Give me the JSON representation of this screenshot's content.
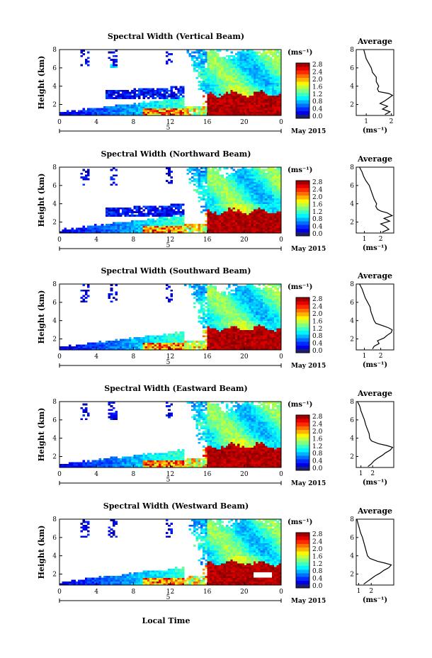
{
  "figure": {
    "xlabel": "Local Time",
    "xtick_labels": [
      "0",
      "4",
      "8",
      "12",
      "16",
      "20",
      "0"
    ],
    "date_marker": "5",
    "date_caption": "May 2015",
    "ylabel": "Height (km)",
    "ytick_labels": [
      "2",
      "4",
      "6",
      "8"
    ],
    "colorbar_unit": "(ms⁻¹)",
    "colorbar_ticks": [
      "0.0",
      "0.4",
      "0.8",
      "1.2",
      "1.6",
      "2.0",
      "2.4",
      "2.8"
    ],
    "avg_title": "Average",
    "avg_unit": "(ms⁻¹)"
  },
  "chart_data": [
    {
      "type": "heatmap",
      "title": "Spectral Width (Vertical Beam)",
      "xlabel": "Local Time",
      "ylabel": "Height (km)",
      "xlim": [
        0,
        24
      ],
      "ylim": [
        0.8,
        8
      ],
      "zlim": [
        0,
        3
      ],
      "average_profile": {
        "type": "line",
        "title": "Average",
        "xlabel": "(ms⁻¹)",
        "xlim": [
          0.6,
          2.1
        ],
        "xtick_labels": [
          "1",
          "2"
        ],
        "ylim": [
          0.8,
          8
        ],
        "height": [
          0.9,
          1.2,
          1.5,
          1.8,
          2.1,
          2.4,
          2.7,
          3.0,
          3.2,
          3.4,
          3.7,
          4.0,
          4.5,
          5.0,
          5.5,
          6.0,
          6.5,
          7.0,
          7.5,
          8.0
        ],
        "width": [
          1.75,
          1.95,
          1.65,
          1.85,
          1.55,
          1.75,
          1.9,
          2.05,
          1.9,
          1.5,
          1.45,
          1.5,
          1.4,
          1.4,
          1.25,
          1.2,
          1.1,
          1.0,
          0.95,
          0.9
        ]
      }
    },
    {
      "type": "heatmap",
      "title": "Spectral Width (Northward Beam)",
      "xlabel": "Local Time",
      "ylabel": "Height (km)",
      "xlim": [
        0,
        24
      ],
      "ylim": [
        0.8,
        8
      ],
      "zlim": [
        0,
        3
      ],
      "average_profile": {
        "type": "line",
        "title": "Average",
        "xlabel": "(ms⁻¹)",
        "xlim": [
          0.5,
          2.8
        ],
        "xtick_labels": [
          "1",
          "2"
        ],
        "ylim": [
          0.8,
          8
        ],
        "height": [
          0.9,
          1.2,
          1.5,
          1.8,
          2.1,
          2.4,
          2.7,
          3.0,
          3.2,
          3.4,
          3.7,
          4.0,
          4.5,
          5.0,
          5.5,
          6.0,
          6.5,
          7.0,
          7.5,
          8.0
        ],
        "width": [
          2.1,
          2.5,
          2.3,
          2.0,
          2.55,
          2.2,
          2.7,
          2.4,
          2.0,
          1.8,
          1.7,
          1.75,
          1.6,
          1.5,
          1.4,
          1.3,
          1.1,
          0.95,
          0.85,
          0.7
        ]
      }
    },
    {
      "type": "heatmap",
      "title": "Spectral Width (Southward Beam)",
      "xlabel": "Local Time",
      "ylabel": "Height (km)",
      "xlim": [
        0,
        24
      ],
      "ylim": [
        0.8,
        8
      ],
      "zlim": [
        0,
        3
      ],
      "average_profile": {
        "type": "line",
        "title": "Average",
        "xlabel": "(ms⁻¹)",
        "xlim": [
          0.5,
          2.8
        ],
        "xtick_labels": [
          "1",
          "2"
        ],
        "ylim": [
          0.8,
          8
        ],
        "height": [
          0.9,
          1.2,
          1.5,
          1.8,
          2.1,
          2.4,
          2.7,
          3.0,
          3.2,
          3.4,
          3.7,
          4.0,
          4.5,
          5.0,
          5.5,
          6.0,
          6.5,
          7.0,
          7.5,
          8.0
        ],
        "width": [
          1.5,
          1.6,
          1.9,
          1.8,
          2.2,
          2.4,
          2.65,
          2.7,
          2.5,
          2.2,
          1.7,
          1.6,
          1.5,
          1.4,
          1.35,
          1.2,
          1.05,
          0.95,
          0.85,
          0.7
        ]
      }
    },
    {
      "type": "heatmap",
      "title": "Spectral Width (Eastward Beam)",
      "xlabel": "Local Time",
      "ylabel": "Height (km)",
      "xlim": [
        0,
        24
      ],
      "ylim": [
        0.8,
        8
      ],
      "zlim": [
        0,
        3
      ],
      "average_profile": {
        "type": "line",
        "title": "Average",
        "xlabel": "(ms⁻¹)",
        "xlim": [
          0.6,
          3.8
        ],
        "xtick_labels": [
          "1",
          "2"
        ],
        "ylim": [
          0.8,
          8
        ],
        "height": [
          0.9,
          1.2,
          1.5,
          1.8,
          2.1,
          2.4,
          2.7,
          3.0,
          3.2,
          3.4,
          3.7,
          4.0,
          4.5,
          5.0,
          5.5,
          6.0,
          6.5,
          7.0,
          7.5,
          8.0
        ],
        "width": [
          1.6,
          1.9,
          2.1,
          2.4,
          2.8,
          3.1,
          3.5,
          3.7,
          3.2,
          2.5,
          1.9,
          1.75,
          1.7,
          1.55,
          1.4,
          1.3,
          1.15,
          1.0,
          0.9,
          0.7
        ]
      }
    },
    {
      "type": "heatmap",
      "title": "Spectral Width (Westward Beam)",
      "xlabel": "Local Time",
      "ylabel": "Height (km)",
      "xlim": [
        0,
        24
      ],
      "ylim": [
        0.8,
        8
      ],
      "zlim": [
        0,
        3
      ],
      "average_profile": {
        "type": "line",
        "title": "Average",
        "xlabel": "(ms⁻¹)",
        "xlim": [
          0.8,
          3.8
        ],
        "xtick_labels": [
          "1",
          "2"
        ],
        "ylim": [
          0.8,
          8
        ],
        "height": [
          0.9,
          1.2,
          1.5,
          1.8,
          2.1,
          2.4,
          2.7,
          3.0,
          3.2,
          3.4,
          3.7,
          4.0,
          4.5,
          5.0,
          5.5,
          6.0,
          6.5,
          7.0,
          7.5,
          8.0
        ],
        "width": [
          1.4,
          1.7,
          2.0,
          2.3,
          2.7,
          3.0,
          3.4,
          3.6,
          3.1,
          2.5,
          1.9,
          1.7,
          1.6,
          1.5,
          1.4,
          1.3,
          1.15,
          1.05,
          0.95,
          0.85
        ]
      }
    }
  ]
}
